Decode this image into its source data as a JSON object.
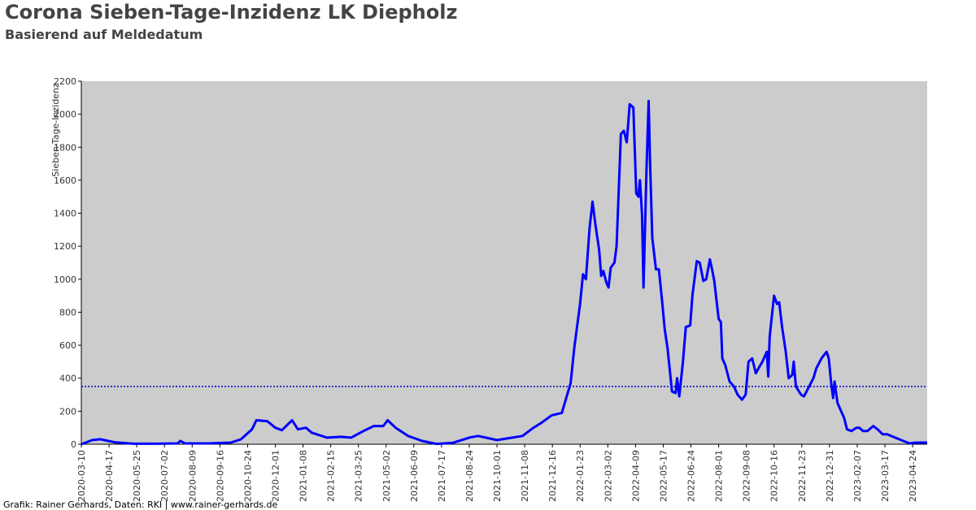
{
  "chart_data": {
    "type": "line",
    "title": "Corona Sieben-Tage-Inzidenz LK Diepholz",
    "subtitle": "Basierend auf Meldedatum",
    "y_label": "Sieben-Tage-Inzidenz",
    "footer": "Grafik: Rainer Gerhards, Daten: RKI | www.rainer-gerhards.de",
    "color": "#0000ff",
    "reference_line": 350,
    "reference_color": "#0000cc",
    "ylim": [
      0,
      2200
    ],
    "yticks": [
      0,
      200,
      400,
      600,
      800,
      1000,
      1200,
      1400,
      1600,
      1800,
      2000,
      2200
    ],
    "xlim": [
      "2020-03-10",
      "2023-05-14"
    ],
    "xticks": [
      "2020-03-10",
      "2020-04-17",
      "2020-05-25",
      "2020-07-02",
      "2020-08-09",
      "2020-09-16",
      "2020-10-24",
      "2020-12-01",
      "2021-01-08",
      "2021-02-15",
      "2021-03-25",
      "2021-05-02",
      "2021-06-09",
      "2021-07-17",
      "2021-08-24",
      "2021-10-01",
      "2021-11-08",
      "2021-12-16",
      "2022-01-23",
      "2022-03-02",
      "2022-04-09",
      "2022-05-17",
      "2022-06-24",
      "2022-08-01",
      "2022-09-08",
      "2022-10-16",
      "2022-11-23",
      "2022-12-31",
      "2023-02-07",
      "2023-03-17",
      "2023-04-24"
    ],
    "x": [
      "2020-03-10",
      "2020-03-25",
      "2020-04-05",
      "2020-04-25",
      "2020-05-20",
      "2020-06-20",
      "2020-07-20",
      "2020-07-24",
      "2020-07-30",
      "2020-09-01",
      "2020-10-01",
      "2020-10-15",
      "2020-10-30",
      "2020-11-05",
      "2020-11-20",
      "2020-12-01",
      "2020-12-10",
      "2020-12-24",
      "2021-01-01",
      "2021-01-12",
      "2021-01-20",
      "2021-02-10",
      "2021-03-01",
      "2021-03-15",
      "2021-04-01",
      "2021-04-15",
      "2021-04-28",
      "2021-05-04",
      "2021-05-15",
      "2021-06-01",
      "2021-06-20",
      "2021-07-10",
      "2021-08-01",
      "2021-08-24",
      "2021-09-05",
      "2021-10-01",
      "2021-10-15",
      "2021-11-05",
      "2021-11-20",
      "2021-12-01",
      "2021-12-15",
      "2021-12-29",
      "2022-01-04",
      "2022-01-10",
      "2022-01-15",
      "2022-01-23",
      "2022-01-27",
      "2022-01-31",
      "2022-02-05",
      "2022-02-09",
      "2022-02-13",
      "2022-02-18",
      "2022-02-21",
      "2022-02-24",
      "2022-02-28",
      "2022-03-03",
      "2022-03-06",
      "2022-03-11",
      "2022-03-14",
      "2022-03-20",
      "2022-03-24",
      "2022-03-28",
      "2022-04-01",
      "2022-04-06",
      "2022-04-10",
      "2022-04-13",
      "2022-04-15",
      "2022-04-18",
      "2022-04-20",
      "2022-04-24",
      "2022-04-27",
      "2022-04-29",
      "2022-05-02",
      "2022-05-07",
      "2022-05-11",
      "2022-05-16",
      "2022-05-19",
      "2022-05-23",
      "2022-05-29",
      "2022-06-03",
      "2022-06-05",
      "2022-06-08",
      "2022-06-13",
      "2022-06-17",
      "2022-06-23",
      "2022-06-26",
      "2022-07-02",
      "2022-07-06",
      "2022-07-11",
      "2022-07-15",
      "2022-07-20",
      "2022-07-23",
      "2022-07-26",
      "2022-08-01",
      "2022-08-04",
      "2022-08-06",
      "2022-08-10",
      "2022-08-16",
      "2022-08-22",
      "2022-08-27",
      "2022-09-02",
      "2022-09-07",
      "2022-09-11",
      "2022-09-16",
      "2022-09-21",
      "2022-09-26",
      "2022-09-30",
      "2022-10-06",
      "2022-10-08",
      "2022-10-10",
      "2022-10-16",
      "2022-10-20",
      "2022-10-23",
      "2022-10-27",
      "2022-11-01",
      "2022-11-05",
      "2022-11-10",
      "2022-11-12",
      "2022-11-15",
      "2022-11-22",
      "2022-11-26",
      "2022-12-03",
      "2022-12-09",
      "2022-12-13",
      "2022-12-20",
      "2022-12-27",
      "2022-12-30",
      "2023-01-02",
      "2023-01-05",
      "2023-01-07",
      "2023-01-11",
      "2023-01-16",
      "2023-01-20",
      "2023-01-24",
      "2023-01-30",
      "2023-02-06",
      "2023-02-10",
      "2023-02-15",
      "2023-02-21",
      "2023-03-01",
      "2023-03-07",
      "2023-03-14",
      "2023-03-20",
      "2023-03-31",
      "2023-04-11",
      "2023-04-20",
      "2023-04-28",
      "2023-05-14"
    ],
    "values": [
      0,
      25,
      30,
      12,
      3,
      3,
      5,
      20,
      5,
      5,
      10,
      30,
      90,
      145,
      140,
      100,
      85,
      145,
      90,
      100,
      70,
      40,
      45,
      40,
      80,
      110,
      110,
      145,
      100,
      50,
      20,
      2,
      8,
      40,
      50,
      25,
      35,
      50,
      100,
      130,
      175,
      190,
      280,
      370,
      585,
      850,
      1030,
      1000,
      1310,
      1470,
      1330,
      1180,
      1020,
      1050,
      980,
      950,
      1070,
      1100,
      1200,
      1880,
      1900,
      1830,
      2060,
      2040,
      1520,
      1500,
      1600,
      1390,
      950,
      1650,
      2080,
      1700,
      1250,
      1060,
      1060,
      840,
      700,
      580,
      320,
      310,
      400,
      290,
      500,
      710,
      720,
      900,
      1110,
      1100,
      990,
      1000,
      1120,
      1060,
      990,
      760,
      740,
      520,
      480,
      380,
      350,
      300,
      270,
      300,
      500,
      520,
      430,
      470,
      500,
      560,
      410,
      650,
      900,
      850,
      860,
      710,
      560,
      400,
      420,
      500,
      350,
      300,
      290,
      350,
      400,
      460,
      520,
      560,
      520,
      380,
      280,
      380,
      250,
      200,
      160,
      90,
      80,
      100,
      100,
      80,
      80,
      110,
      90,
      60,
      60,
      40,
      20,
      5,
      10,
      10
    ]
  }
}
